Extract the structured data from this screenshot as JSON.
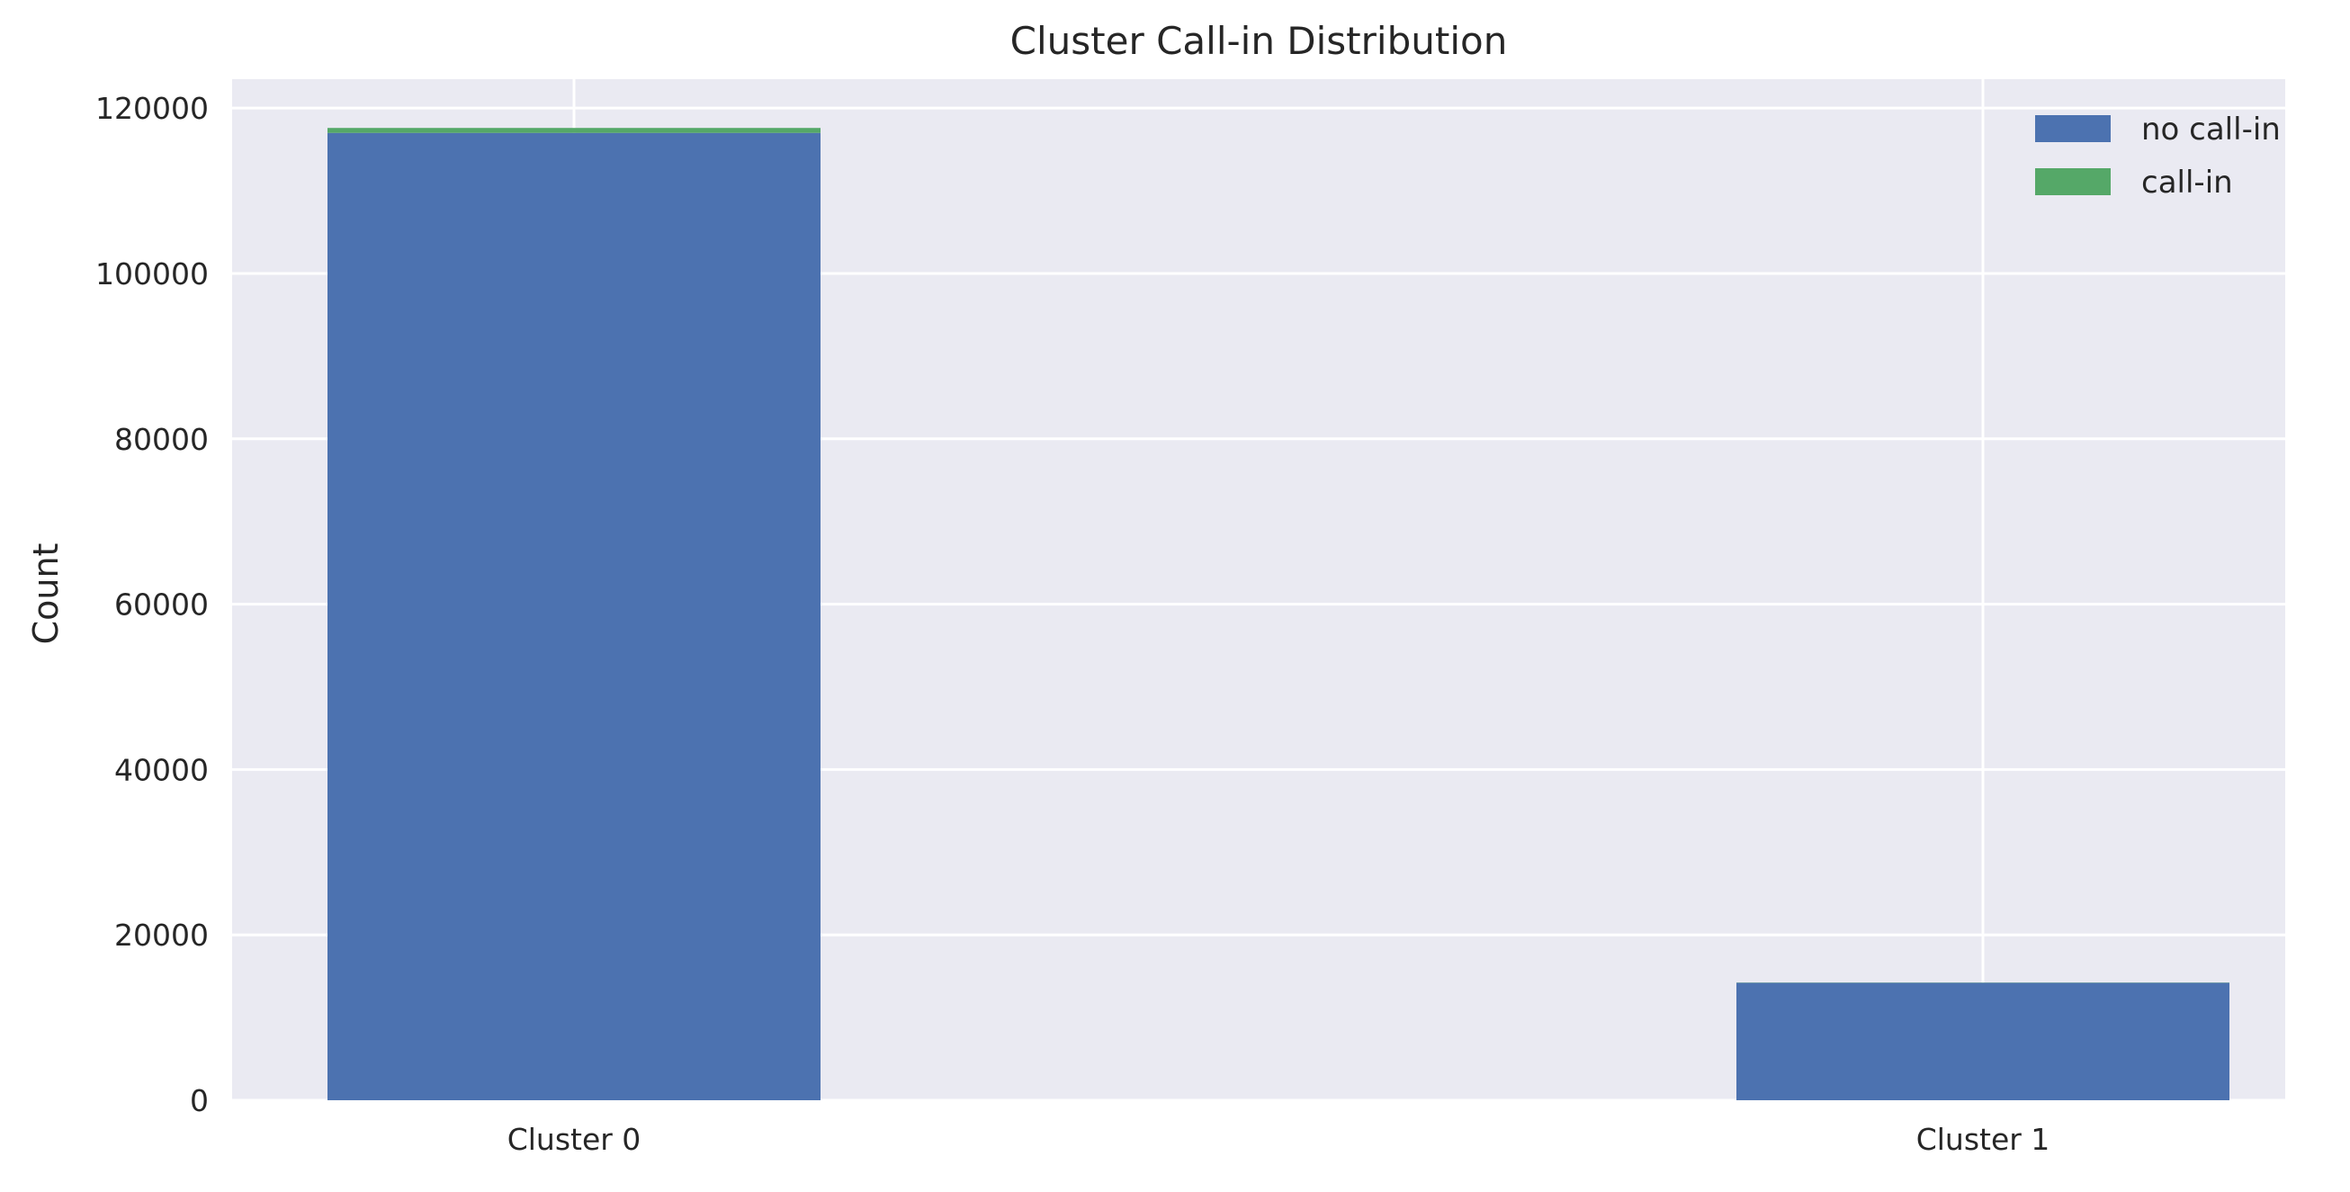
{
  "chart_data": {
    "type": "bar",
    "stacked": true,
    "title": "Cluster Call-in Distribution",
    "xlabel": "",
    "ylabel": "Count",
    "categories": [
      "Cluster 0",
      "Cluster 1"
    ],
    "series": [
      {
        "name": "no call-in",
        "values": [
          117000,
          14200
        ],
        "color": "#4c72b0"
      },
      {
        "name": "call-in",
        "values": [
          600,
          30
        ],
        "color": "#55a868"
      }
    ],
    "yticks": [
      "0",
      "20000",
      "40000",
      "60000",
      "80000",
      "100000",
      "120000"
    ],
    "ytick_values": [
      0,
      20000,
      40000,
      60000,
      80000,
      100000,
      120000
    ],
    "ylim": [
      0,
      123500
    ],
    "grid": true,
    "legend_position": "top-right",
    "plot_background": "#eaeaf2",
    "grid_color": "#ffffff"
  }
}
